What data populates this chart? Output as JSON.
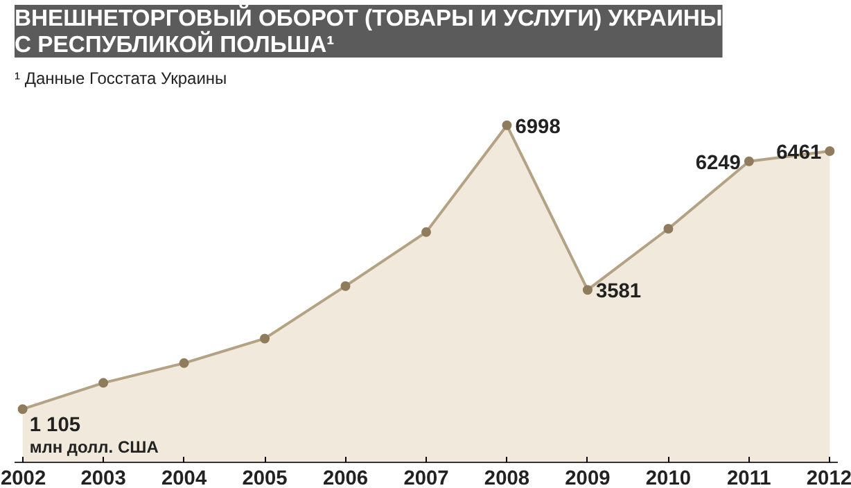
{
  "chart_data": {
    "type": "area",
    "title": "ВНЕШНЕТОРГОВЫЙ ОБОРОТ (ТОВАРЫ И УСЛУГИ) УКРАИНЫ\nС РЕСПУБЛИКОЙ ПОЛЬША¹",
    "annotations": [
      "¹ Данные Госстата Украины",
      "млн долл. США"
    ],
    "categories": [
      "2002",
      "2003",
      "2004",
      "2005",
      "2006",
      "2007",
      "2008",
      "2009",
      "2010",
      "2011",
      "2012"
    ],
    "series": [
      {
        "color": "#b3a283",
        "values": [
          1105,
          1650,
          2060,
          2570,
          3660,
          4780,
          6998,
          3581,
          4850,
          6249,
          6461
        ],
        "value_labels": [
          "1 105",
          null,
          null,
          null,
          null,
          null,
          "6998",
          "3581",
          null,
          "6249",
          "6461"
        ]
      }
    ],
    "marker": "circle",
    "grid": false
  }
}
